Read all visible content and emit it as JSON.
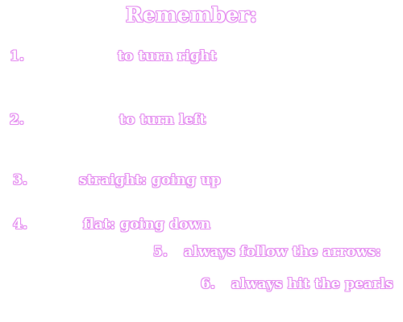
{
  "title": "Remember:",
  "items": [
    {
      "number": "1.",
      "text": "to turn right"
    },
    {
      "number": "2.",
      "text": "to turn left"
    },
    {
      "number": "3.",
      "text": "straight: going up"
    },
    {
      "number": "4.",
      "text": "flat: going down"
    },
    {
      "number": "5.",
      "text": "always follow the arrows:"
    },
    {
      "number": "6.",
      "text": "always hit the pearls"
    }
  ],
  "colors": {
    "outline": "#e58ff0",
    "fill": "#ffffff",
    "background": "#ffffff"
  }
}
